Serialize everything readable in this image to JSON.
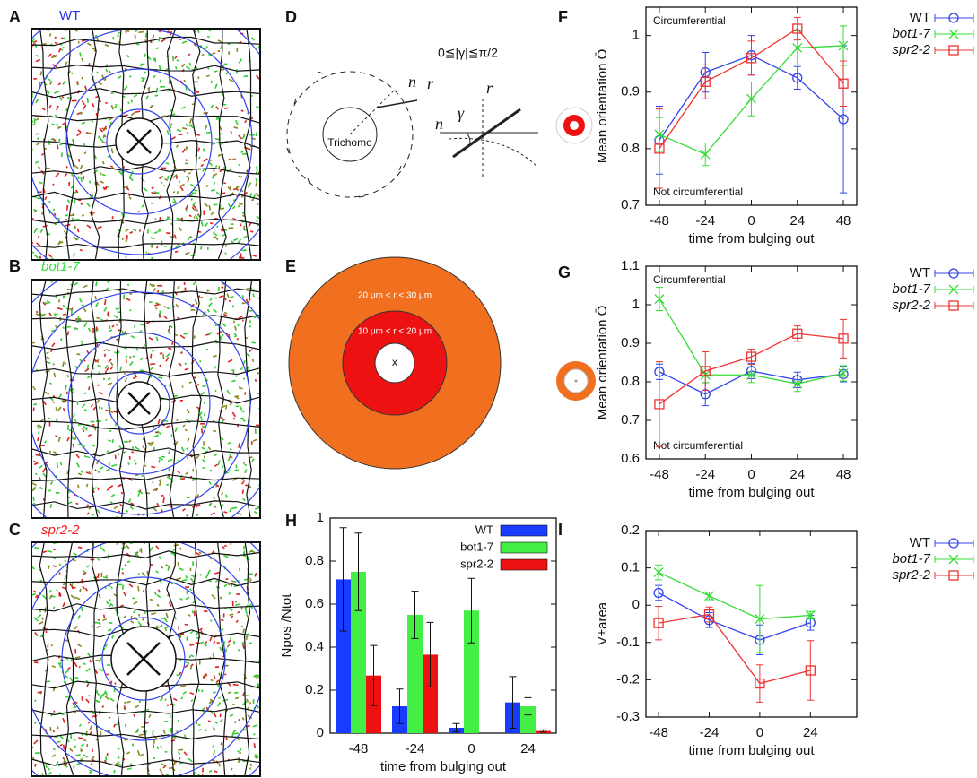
{
  "panels": {
    "A": {
      "label": "A",
      "title": "WT"
    },
    "B": {
      "label": "B",
      "title": "bot1-7"
    },
    "C": {
      "label": "C",
      "title": "spr2-2"
    },
    "D": {
      "label": "D",
      "trichome": "Trichome",
      "n_top": "n",
      "r_top": "r",
      "range": "0≦|γ|≦π/2",
      "n_side": "n",
      "gamma": "γ",
      "r_side": "r"
    },
    "E": {
      "label": "E",
      "outer": "20 μm < r < 30 μm",
      "inner": "10 μm < r < 20 μm",
      "center": "x"
    }
  },
  "chart_data": [
    {
      "type": "line",
      "panel_label": "F",
      "y_label": "Mean orientation Ō",
      "x_label": "time from bulging out",
      "annotations": [
        "Circumferential",
        "Not circumferential"
      ],
      "legend": "outside-right",
      "x": [
        -48,
        -24,
        0,
        24,
        48
      ],
      "xlim": [
        -55,
        55
      ],
      "xticks": [
        -48,
        -24,
        0,
        24,
        48
      ],
      "ylim": [
        0.7,
        1.05
      ],
      "yticks": [
        0.7,
        0.8,
        0.9,
        1
      ],
      "series": [
        {
          "name": "WT",
          "color": "#3344ee",
          "marker": "circle",
          "values": [
            0.815,
            0.935,
            0.965,
            0.925,
            0.852
          ],
          "errors": [
            0.06,
            0.035,
            0.035,
            0.02,
            0.13
          ]
        },
        {
          "name": "bot1-7",
          "color": "#33dd33",
          "marker": "x",
          "values": [
            0.825,
            0.79,
            0.888,
            0.978,
            0.982
          ],
          "errors": [
            0.03,
            0.02,
            0.03,
            0.03,
            0.035
          ]
        },
        {
          "name": "spr2-2",
          "color": "#ee3333",
          "marker": "square",
          "values": [
            0.8,
            0.918,
            0.96,
            1.012,
            0.915
          ],
          "errors": [
            0.07,
            0.03,
            0.03,
            0.02,
            0.04
          ]
        }
      ]
    },
    {
      "type": "line",
      "panel_label": "G",
      "y_label": "Mean orientation Ō",
      "x_label": "time from bulging out",
      "annotations": [
        "Circumferential",
        "Not circumferential"
      ],
      "legend": "outside-right",
      "x": [
        -48,
        -24,
        0,
        24,
        48
      ],
      "xlim": [
        -55,
        55
      ],
      "xticks": [
        -48,
        -24,
        0,
        24,
        48
      ],
      "ylim": [
        0.6,
        1.1
      ],
      "yticks": [
        0.6,
        0.7,
        0.8,
        0.9,
        1,
        1.1
      ],
      "series": [
        {
          "name": "WT",
          "color": "#3344ee",
          "marker": "circle",
          "values": [
            0.826,
            0.768,
            0.828,
            0.805,
            0.82
          ],
          "errors": [
            0.02,
            0.03,
            0.02,
            0.02,
            0.02
          ]
        },
        {
          "name": "bot1-7",
          "color": "#33dd33",
          "marker": "x",
          "values": [
            1.015,
            0.818,
            0.818,
            0.795,
            0.822
          ],
          "errors": [
            0.03,
            0.02,
            0.02,
            0.02,
            0.02
          ]
        },
        {
          "name": "spr2-2",
          "color": "#ee3333",
          "marker": "square",
          "values": [
            0.742,
            0.828,
            0.865,
            0.925,
            0.912
          ],
          "errors": [
            0.11,
            0.05,
            0.02,
            0.02,
            0.05
          ]
        }
      ]
    },
    {
      "type": "bar",
      "panel_label": "H",
      "y_label": "Npos /Ntot",
      "x_label": "time from bulging out",
      "legend": "upper-right",
      "categories": [
        -48,
        -24,
        0,
        24
      ],
      "ylim": [
        0,
        1
      ],
      "yticks": [
        0,
        0.2,
        0.4,
        0.6,
        0.8,
        1
      ],
      "series": [
        {
          "name": "WT",
          "color": "#1a3cff",
          "values": [
            0.715,
            0.125,
            0.025,
            0.143
          ],
          "errors": [
            0.24,
            0.08,
            0.02,
            0.12
          ]
        },
        {
          "name": "bot1-7",
          "color": "#44ee44",
          "values": [
            0.75,
            0.55,
            0.57,
            0.125
          ],
          "errors": [
            0.18,
            0.11,
            0.15,
            0.04
          ]
        },
        {
          "name": "spr2-2",
          "color": "#ee1111",
          "values": [
            0.268,
            0.365,
            null,
            0.01
          ],
          "errors": [
            0.14,
            0.15,
            null,
            0.005
          ]
        }
      ]
    },
    {
      "type": "line",
      "panel_label": "I",
      "y_label": "V±area",
      "x_label": "time from bulging out",
      "legend": "outside-right",
      "x": [
        -48,
        -24,
        0,
        24
      ],
      "xlim": [
        -54,
        46
      ],
      "xticks": [
        -48,
        -24,
        0,
        24
      ],
      "ylim": [
        -0.3,
        0.2
      ],
      "yticks": [
        -0.3,
        -0.2,
        -0.1,
        0,
        0.1,
        0.2
      ],
      "series": [
        {
          "name": "WT",
          "color": "#3344ee",
          "marker": "circle",
          "values": [
            0.033,
            -0.04,
            -0.093,
            -0.047
          ],
          "errors": [
            0.02,
            0.02,
            0.04,
            0.02
          ]
        },
        {
          "name": "bot1-7",
          "color": "#33dd33",
          "marker": "x",
          "values": [
            0.088,
            0.025,
            -0.037,
            -0.027
          ],
          "errors": [
            0.02,
            0.01,
            0.09,
            0.01
          ]
        },
        {
          "name": "spr2-2",
          "color": "#ee3333",
          "marker": "square",
          "values": [
            -0.048,
            -0.025,
            -0.21,
            -0.175
          ],
          "errors": [
            0.045,
            0.02,
            0.05,
            0.08
          ]
        }
      ]
    }
  ]
}
